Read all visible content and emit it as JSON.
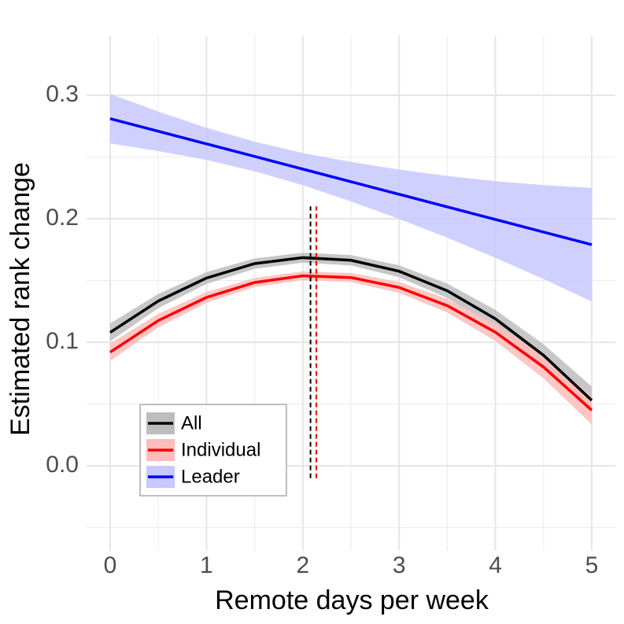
{
  "chart_data": {
    "type": "line",
    "x_label": "Remote days per week",
    "y_label": "Estimated rank change",
    "x": [
      0,
      0.5,
      1,
      1.5,
      2,
      2.5,
      3,
      3.5,
      4,
      4.5,
      5
    ],
    "series": [
      {
        "name": "All",
        "color": "#000000",
        "band_color": "#bdbdbd",
        "values": [
          0.108,
          0.1334,
          0.152,
          0.1637,
          0.1685,
          0.1664,
          0.1575,
          0.1417,
          0.119,
          0.0894,
          0.053
        ],
        "lower": [
          0.1008,
          0.1276,
          0.1472,
          0.1595,
          0.1645,
          0.1622,
          0.1527,
          0.1359,
          0.1118,
          0.0804,
          0.0418
        ],
        "upper": [
          0.1152,
          0.1392,
          0.1568,
          0.1679,
          0.1725,
          0.1706,
          0.1623,
          0.1475,
          0.1262,
          0.0984,
          0.0642
        ]
      },
      {
        "name": "Individual",
        "color": "#ff0000",
        "band_color": "#ffbcbc",
        "values": [
          0.092,
          0.1176,
          0.1363,
          0.1484,
          0.1538,
          0.1524,
          0.1444,
          0.1296,
          0.1081,
          0.0799,
          0.045
        ],
        "lower": [
          0.0849,
          0.1121,
          0.1319,
          0.1447,
          0.1503,
          0.1487,
          0.14,
          0.1241,
          0.101,
          0.0708,
          0.0334
        ],
        "upper": [
          0.0991,
          0.1231,
          0.1407,
          0.1521,
          0.1573,
          0.1561,
          0.1488,
          0.1351,
          0.1152,
          0.089,
          0.0566
        ]
      },
      {
        "name": "Leader",
        "color": "#0000ff",
        "band_color": "#c8c8ff",
        "values": [
          0.281,
          0.2708,
          0.2606,
          0.2504,
          0.2402,
          0.23,
          0.2198,
          0.2096,
          0.1994,
          0.1892,
          0.179
        ],
        "lower": [
          0.261,
          0.2548,
          0.2476,
          0.2384,
          0.2272,
          0.214,
          0.1998,
          0.1846,
          0.1684,
          0.1512,
          0.133
        ],
        "upper": [
          0.301,
          0.2868,
          0.2736,
          0.2624,
          0.2532,
          0.246,
          0.2398,
          0.2346,
          0.2304,
          0.2272,
          0.225
        ]
      }
    ],
    "vlines": [
      {
        "x": 2.08,
        "ymin": -0.01,
        "ymax": 0.21,
        "color": "#000000"
      },
      {
        "x": 2.14,
        "ymin": -0.01,
        "ymax": 0.21,
        "color": "#ff0000"
      }
    ],
    "xlim": [
      -0.245,
      5.245
    ],
    "ylim": [
      -0.0688,
      0.3484
    ],
    "xticks": [
      0,
      1,
      2,
      3,
      4,
      5
    ],
    "yticks": [
      {
        "value": 0,
        "label": "0.0"
      },
      0.1,
      0.2,
      0.3
    ],
    "xminorticks": [
      0.5,
      1.5,
      2.5,
      3.5,
      4.5
    ],
    "yminorticks": [
      -0.05,
      0.05,
      0.15,
      0.25
    ],
    "grid": true,
    "legend_position": "lower left"
  }
}
